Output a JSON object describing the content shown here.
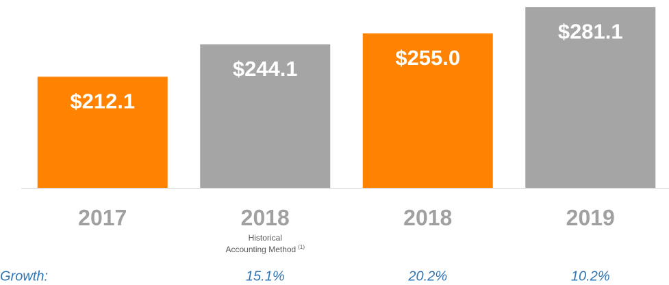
{
  "chart_data": {
    "type": "bar",
    "categories": [
      "2017",
      "2018",
      "2018",
      "2019"
    ],
    "values": [
      212.1,
      244.1,
      255.0,
      281.1
    ],
    "value_labels": [
      "$212.1",
      "$244.1",
      "$255.0",
      "$281.1"
    ],
    "colors": [
      "#ff8200",
      "#a5a5a5",
      "#ff8200",
      "#a5a5a5"
    ],
    "ylim": [
      102,
      288
    ],
    "category_note": {
      "index": 1,
      "lines": [
        "Historical",
        "Accounting Method"
      ],
      "footnote": "(1)"
    },
    "growth": {
      "label": "Growth:",
      "values": [
        null,
        15.1,
        20.2,
        10.2
      ],
      "value_labels": [
        null,
        "15.1%",
        "20.2%",
        "10.2%"
      ]
    }
  }
}
